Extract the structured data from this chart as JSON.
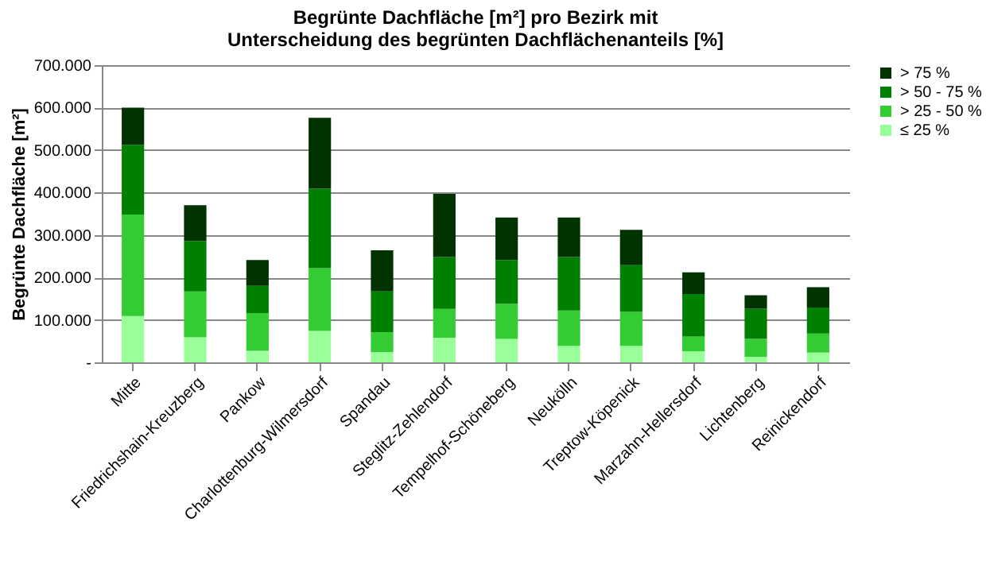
{
  "chart_data": {
    "type": "bar",
    "stacked": true,
    "title": "Begrünte Dachfläche [m²] pro Bezirk mit\nUnterscheidung des begrünten Dachflächenanteils [%]",
    "ylabel": "Begrünte Dachfläche [m²]",
    "categories": [
      "Mitte",
      "Friedrichshain-Kreuzberg",
      "Pankow",
      "Charlottenburg-Wilmersdorf",
      "Spandau",
      "Steglitz-Zehlendorf",
      "Tempelhof-Schöneberg",
      "Neukölln",
      "Treptow-Köpenick",
      "Marzahn-Hellersdorf",
      "Lichtenberg",
      "Reinickendorf"
    ],
    "series": [
      {
        "name": "≤ 25 %",
        "color": "#99ff99",
        "values": [
          109000,
          59000,
          27000,
          74000,
          24000,
          58000,
          55000,
          39000,
          39000,
          26000,
          13000,
          23000
        ]
      },
      {
        "name": "> 25 - 50 %",
        "color": "#33cc33",
        "values": [
          239000,
          108000,
          89000,
          148000,
          47000,
          68000,
          83000,
          83000,
          80000,
          35000,
          42000,
          45000
        ]
      },
      {
        "name": "> 50 - 75 %",
        "color": "#008000",
        "values": [
          164000,
          119000,
          64000,
          187000,
          96000,
          122000,
          103000,
          126000,
          110000,
          100000,
          71000,
          61000
        ]
      },
      {
        "name": "> 75 %",
        "color": "#003300",
        "values": [
          88000,
          84000,
          61000,
          167000,
          97000,
          149000,
          100000,
          93000,
          83000,
          51000,
          32000,
          48000
        ]
      }
    ],
    "ylim": [
      0,
      700000
    ],
    "yticks": [
      {
        "value": 0,
        "label": "-"
      },
      {
        "value": 100000,
        "label": "100.000"
      },
      {
        "value": 200000,
        "label": "200.000"
      },
      {
        "value": 300000,
        "label": "300.000"
      },
      {
        "value": 400000,
        "label": "400.000"
      },
      {
        "value": 500000,
        "label": "500.000"
      },
      {
        "value": 600000,
        "label": "600.000"
      },
      {
        "value": 700000,
        "label": "700.000"
      }
    ],
    "grid": "y",
    "legend": "right"
  }
}
